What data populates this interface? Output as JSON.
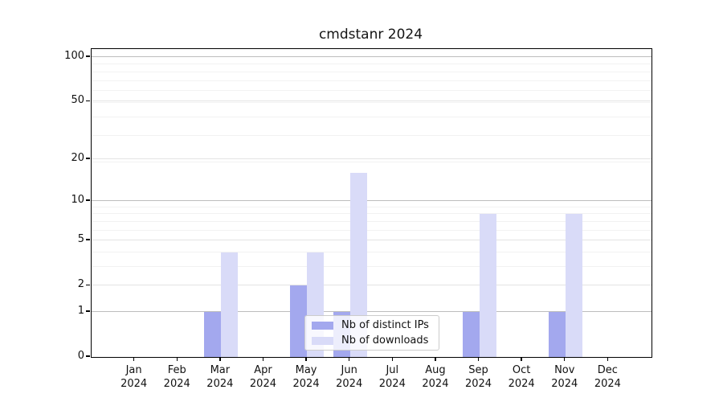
{
  "chart_data": {
    "type": "bar",
    "title": "cmdstanr 2024",
    "categories": [
      "Jan 2024",
      "Feb 2024",
      "Mar 2024",
      "Apr 2024",
      "May 2024",
      "Jun 2024",
      "Jul 2024",
      "Aug 2024",
      "Sep 2024",
      "Oct 2024",
      "Nov 2024",
      "Dec 2024"
    ],
    "series": [
      {
        "name": "Nb of distinct IPs",
        "color": "#a3a8ee",
        "values": [
          0,
          0,
          1,
          0,
          2,
          1,
          0,
          0,
          1,
          0,
          1,
          0
        ]
      },
      {
        "name": "Nb of downloads",
        "color": "#d9dbf8",
        "values": [
          0,
          0,
          4,
          0,
          4,
          16,
          0,
          0,
          8,
          0,
          8,
          0
        ]
      }
    ],
    "xlabel": "",
    "ylabel": "",
    "y_axis": {
      "scale": "log1p",
      "tick_values": [
        0,
        1,
        2,
        5,
        10,
        20,
        50,
        100
      ],
      "range": [
        0,
        100
      ]
    },
    "grid": "horizontal",
    "legend": {
      "position": "lower-center-inside"
    }
  }
}
